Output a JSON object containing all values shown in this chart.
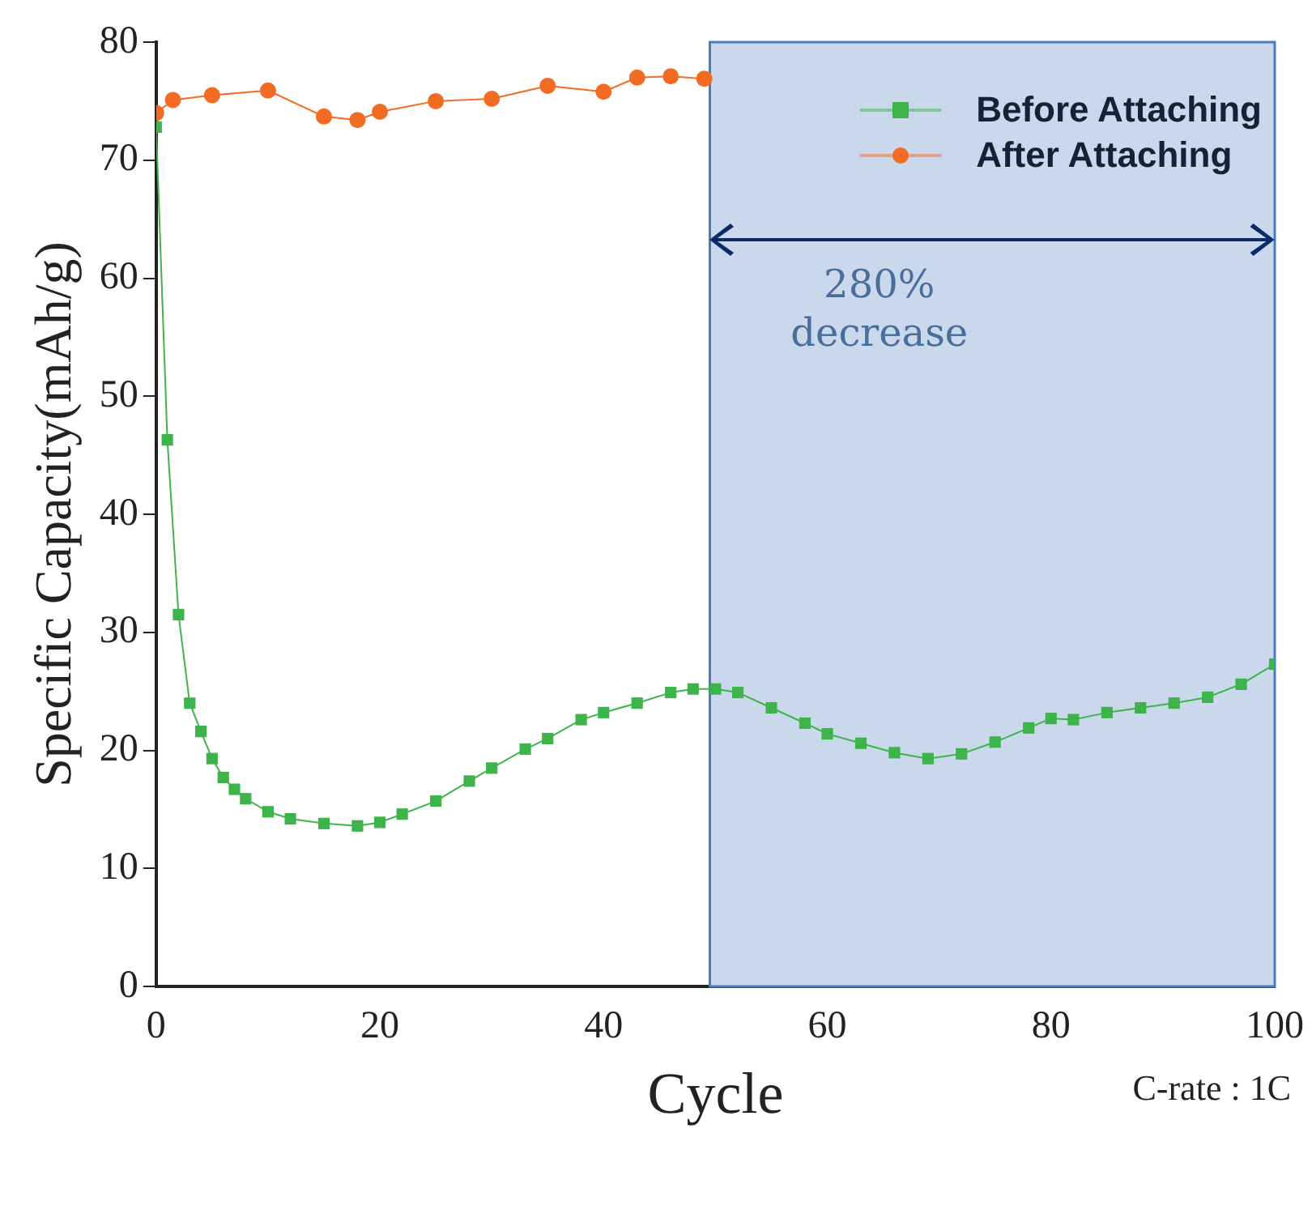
{
  "chart_data": {
    "type": "line",
    "xlabel": "Cycle",
    "ylabel": "Specific Capacity(mAh/g)",
    "series": [
      {
        "name": "Before Attaching",
        "color": "#3cb44a",
        "marker": "square",
        "x": [
          0,
          1,
          2,
          3,
          4,
          5,
          6,
          7,
          8,
          10,
          12,
          15,
          18,
          20,
          22,
          25,
          28,
          30,
          33,
          35,
          38,
          40,
          43,
          46,
          48,
          50,
          52,
          55,
          58,
          60,
          63,
          66,
          69,
          72,
          75,
          78,
          80,
          82,
          85,
          88,
          91,
          94,
          97,
          100
        ],
        "values": [
          72.8,
          46.3,
          31.5,
          24,
          21.6,
          19.3,
          17.7,
          16.7,
          15.9,
          14.8,
          14.2,
          13.8,
          13.6,
          13.9,
          14.6,
          15.7,
          17.4,
          18.5,
          20.1,
          21,
          22.6,
          23.2,
          24,
          24.9,
          25.2,
          25.2,
          24.9,
          23.6,
          22.3,
          21.4,
          20.6,
          19.8,
          19.3,
          19.7,
          20.7,
          21.9,
          22.7,
          22.6,
          23.2,
          23.6,
          24,
          24.5,
          25.6,
          27.3
        ]
      },
      {
        "name": "After Attaching",
        "color": "#f26b22",
        "marker": "circle",
        "x": [
          0,
          1.5,
          5,
          10,
          15,
          18,
          20,
          25,
          30,
          35,
          40,
          43,
          46,
          49
        ],
        "values": [
          74.0,
          75.1,
          75.5,
          75.9,
          73.7,
          73.4,
          74.1,
          75.0,
          75.2,
          76.3,
          75.8,
          77.0,
          77.1,
          76.9
        ]
      }
    ],
    "xlim": [
      0,
      100
    ],
    "xticks": [
      0,
      20,
      40,
      60,
      80,
      100
    ],
    "ylim": [
      0,
      80
    ],
    "yticks": [
      0,
      10,
      20,
      30,
      40,
      50,
      60,
      70,
      80
    ],
    "grid": false,
    "legend": "top right",
    "line_style": "solid",
    "bands": [
      {
        "axis": "x",
        "from": 49.5,
        "to": 100,
        "color": "#c9d8ea"
      }
    ],
    "annotations": [
      "280%\ndecrease",
      "C-rate : 1C"
    ]
  }
}
